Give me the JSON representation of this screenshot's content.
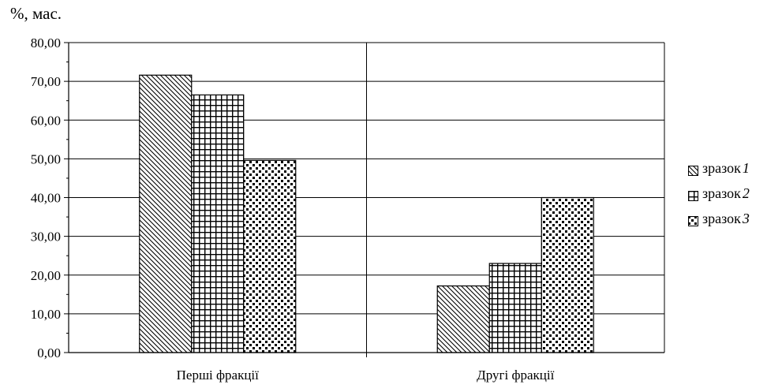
{
  "chart_data": {
    "type": "bar",
    "ylabel": "%, мас.",
    "categories": [
      "Перші фракції",
      "Другі фракції"
    ],
    "series": [
      {
        "name": "зразок 1",
        "values": [
          71.6,
          17.2
        ],
        "pattern": "diagonal"
      },
      {
        "name": "зразок 2",
        "values": [
          66.5,
          23.0
        ],
        "pattern": "grid"
      },
      {
        "name": "зразок 3",
        "values": [
          49.6,
          40.0
        ],
        "pattern": "dots"
      }
    ],
    "ylim": [
      0,
      80
    ],
    "yticks": [
      "0,00",
      "10,00",
      "20,00",
      "30,00",
      "40,00",
      "50,00",
      "60,00",
      "70,00",
      "80,00"
    ],
    "grid": true,
    "legend_position": "right"
  },
  "legend": [
    {
      "label": "зразок",
      "num": "1"
    },
    {
      "label": "зразок",
      "num": "2"
    },
    {
      "label": "зразок",
      "num": "3"
    }
  ]
}
